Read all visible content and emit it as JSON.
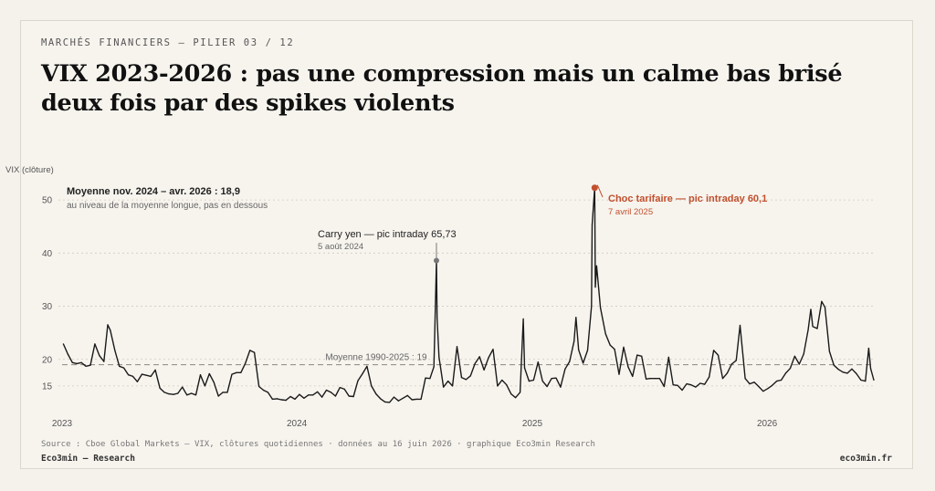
{
  "header": {
    "kicker": "MARCHÉS FINANCIERS — PILIER 03 / 12",
    "title": "VIX 2023-2026 : pas une compression mais un calme bas brisé deux fois par des spikes violents"
  },
  "footer": {
    "source": "Source : Cboe Global Markets — VIX, clôtures quotidiennes · données au 16 juin 2026 · graphique Eco3min Research",
    "brand": "Eco3min — Research",
    "site": "eco3min.fr"
  },
  "chart_data": {
    "type": "line",
    "ylabel": "VIX (clôture)",
    "ylim": [
      10,
      55
    ],
    "yticks": [
      15,
      20,
      30,
      40,
      50
    ],
    "xlim": [
      "2023-01-01",
      "2026-06-16"
    ],
    "xticks": [
      {
        "date": "2023-01-01",
        "label": "2023"
      },
      {
        "date": "2024-01-01",
        "label": "2024"
      },
      {
        "date": "2025-01-01",
        "label": "2025"
      },
      {
        "date": "2026-01-01",
        "label": "2026"
      }
    ],
    "grid": true,
    "reference_line": {
      "value": 19,
      "label": "Moyenne 1990-2025 : 19"
    },
    "note": {
      "title": "Moyenne nov. 2024 – avr. 2026 : 18,9",
      "subtitle": "au niveau de la moyenne longue, pas en dessous"
    },
    "annotations": [
      {
        "date": "2024-08-05",
        "value": 38.6,
        "label": "Carry yen — pic intraday 65,73",
        "sublabel": "5 août 2024",
        "color": "#777777"
      },
      {
        "date": "2025-04-08",
        "value": 52.3,
        "label": "Choc tarifaire — pic intraday 60,1",
        "sublabel": "7 avril 2025",
        "color": "#c1502e"
      }
    ],
    "colors": {
      "line": "#1a1a1a",
      "grid": "#cfcac0",
      "reference": "#8a857c",
      "accent": "#c1502e"
    },
    "series": [
      {
        "points": [
          [
            "2023-01-03",
            22.9
          ],
          [
            "2023-01-10",
            21.0
          ],
          [
            "2023-01-17",
            19.4
          ],
          [
            "2023-01-24",
            19.2
          ],
          [
            "2023-01-31",
            19.4
          ],
          [
            "2023-02-07",
            18.7
          ],
          [
            "2023-02-14",
            18.9
          ],
          [
            "2023-02-21",
            22.9
          ],
          [
            "2023-02-28",
            20.7
          ],
          [
            "2023-03-07",
            19.6
          ],
          [
            "2023-03-13",
            26.5
          ],
          [
            "2023-03-17",
            25.5
          ],
          [
            "2023-03-24",
            21.7
          ],
          [
            "2023-03-31",
            18.7
          ],
          [
            "2023-04-07",
            18.4
          ],
          [
            "2023-04-14",
            17.1
          ],
          [
            "2023-04-21",
            16.8
          ],
          [
            "2023-04-28",
            15.8
          ],
          [
            "2023-05-05",
            17.2
          ],
          [
            "2023-05-12",
            17.0
          ],
          [
            "2023-05-19",
            16.8
          ],
          [
            "2023-05-26",
            18.0
          ],
          [
            "2023-06-02",
            14.6
          ],
          [
            "2023-06-09",
            13.8
          ],
          [
            "2023-06-16",
            13.5
          ],
          [
            "2023-06-23",
            13.4
          ],
          [
            "2023-06-30",
            13.6
          ],
          [
            "2023-07-07",
            14.8
          ],
          [
            "2023-07-14",
            13.3
          ],
          [
            "2023-07-21",
            13.6
          ],
          [
            "2023-07-28",
            13.3
          ],
          [
            "2023-08-04",
            17.1
          ],
          [
            "2023-08-11",
            15.0
          ],
          [
            "2023-08-18",
            17.3
          ],
          [
            "2023-08-25",
            15.7
          ],
          [
            "2023-09-01",
            13.1
          ],
          [
            "2023-09-08",
            13.8
          ],
          [
            "2023-09-15",
            13.8
          ],
          [
            "2023-09-22",
            17.2
          ],
          [
            "2023-09-29",
            17.5
          ],
          [
            "2023-10-06",
            17.5
          ],
          [
            "2023-10-13",
            19.3
          ],
          [
            "2023-10-20",
            21.7
          ],
          [
            "2023-10-27",
            21.3
          ],
          [
            "2023-11-03",
            14.9
          ],
          [
            "2023-11-10",
            14.2
          ],
          [
            "2023-11-17",
            13.8
          ],
          [
            "2023-11-24",
            12.5
          ],
          [
            "2023-12-01",
            12.6
          ],
          [
            "2023-12-08",
            12.4
          ],
          [
            "2023-12-15",
            12.3
          ],
          [
            "2023-12-22",
            13.0
          ],
          [
            "2023-12-29",
            12.5
          ],
          [
            "2024-01-05",
            13.4
          ],
          [
            "2024-01-12",
            12.7
          ],
          [
            "2024-01-19",
            13.3
          ],
          [
            "2024-01-26",
            13.3
          ],
          [
            "2024-02-02",
            13.9
          ],
          [
            "2024-02-09",
            12.9
          ],
          [
            "2024-02-16",
            14.2
          ],
          [
            "2024-02-23",
            13.8
          ],
          [
            "2024-03-01",
            13.1
          ],
          [
            "2024-03-08",
            14.7
          ],
          [
            "2024-03-15",
            14.4
          ],
          [
            "2024-03-22",
            13.1
          ],
          [
            "2024-03-29",
            13.0
          ],
          [
            "2024-04-05",
            16.0
          ],
          [
            "2024-04-12",
            17.3
          ],
          [
            "2024-04-19",
            18.7
          ],
          [
            "2024-04-26",
            15.0
          ],
          [
            "2024-05-03",
            13.5
          ],
          [
            "2024-05-10",
            12.6
          ],
          [
            "2024-05-17",
            12.0
          ],
          [
            "2024-05-24",
            11.9
          ],
          [
            "2024-05-31",
            12.9
          ],
          [
            "2024-06-07",
            12.2
          ],
          [
            "2024-06-14",
            12.7
          ],
          [
            "2024-06-21",
            13.2
          ],
          [
            "2024-06-28",
            12.4
          ],
          [
            "2024-07-05",
            12.5
          ],
          [
            "2024-07-12",
            12.5
          ],
          [
            "2024-07-19",
            16.5
          ],
          [
            "2024-07-26",
            16.4
          ],
          [
            "2024-08-01",
            18.6
          ],
          [
            "2024-08-02",
            23.4
          ],
          [
            "2024-08-05",
            38.6
          ],
          [
            "2024-08-06",
            27.7
          ],
          [
            "2024-08-09",
            20.4
          ],
          [
            "2024-08-16",
            14.8
          ],
          [
            "2024-08-23",
            15.9
          ],
          [
            "2024-08-30",
            15.0
          ],
          [
            "2024-09-06",
            22.4
          ],
          [
            "2024-09-13",
            16.6
          ],
          [
            "2024-09-20",
            16.2
          ],
          [
            "2024-09-27",
            16.9
          ],
          [
            "2024-10-04",
            19.2
          ],
          [
            "2024-10-11",
            20.5
          ],
          [
            "2024-10-18",
            18.0
          ],
          [
            "2024-10-25",
            20.3
          ],
          [
            "2024-11-01",
            21.9
          ],
          [
            "2024-11-08",
            15.0
          ],
          [
            "2024-11-15",
            16.1
          ],
          [
            "2024-11-22",
            15.2
          ],
          [
            "2024-11-29",
            13.5
          ],
          [
            "2024-12-06",
            12.8
          ],
          [
            "2024-12-13",
            13.8
          ],
          [
            "2024-12-18",
            27.6
          ],
          [
            "2024-12-20",
            18.4
          ],
          [
            "2024-12-27",
            15.9
          ],
          [
            "2025-01-03",
            16.1
          ],
          [
            "2025-01-10",
            19.5
          ],
          [
            "2025-01-17",
            15.9
          ],
          [
            "2025-01-24",
            14.9
          ],
          [
            "2025-01-31",
            16.4
          ],
          [
            "2025-02-07",
            16.5
          ],
          [
            "2025-02-14",
            14.8
          ],
          [
            "2025-02-21",
            18.2
          ],
          [
            "2025-02-28",
            19.6
          ],
          [
            "2025-03-07",
            23.4
          ],
          [
            "2025-03-10",
            27.9
          ],
          [
            "2025-03-14",
            21.8
          ],
          [
            "2025-03-21",
            19.3
          ],
          [
            "2025-03-28",
            21.7
          ],
          [
            "2025-04-03",
            30.0
          ],
          [
            "2025-04-04",
            45.3
          ],
          [
            "2025-04-08",
            52.3
          ],
          [
            "2025-04-09",
            33.6
          ],
          [
            "2025-04-11",
            37.6
          ],
          [
            "2025-04-17",
            29.7
          ],
          [
            "2025-04-25",
            24.8
          ],
          [
            "2025-05-02",
            22.7
          ],
          [
            "2025-05-09",
            21.9
          ],
          [
            "2025-05-16",
            17.2
          ],
          [
            "2025-05-23",
            22.3
          ],
          [
            "2025-05-30",
            18.6
          ],
          [
            "2025-06-06",
            16.8
          ],
          [
            "2025-06-13",
            20.8
          ],
          [
            "2025-06-20",
            20.6
          ],
          [
            "2025-06-27",
            16.3
          ],
          [
            "2025-07-03",
            16.4
          ],
          [
            "2025-07-11",
            16.4
          ],
          [
            "2025-07-18",
            16.4
          ],
          [
            "2025-07-25",
            14.9
          ],
          [
            "2025-08-01",
            20.4
          ],
          [
            "2025-08-08",
            15.2
          ],
          [
            "2025-08-15",
            15.1
          ],
          [
            "2025-08-22",
            14.2
          ],
          [
            "2025-08-29",
            15.4
          ],
          [
            "2025-09-05",
            15.2
          ],
          [
            "2025-09-12",
            14.8
          ],
          [
            "2025-09-19",
            15.5
          ],
          [
            "2025-09-26",
            15.3
          ],
          [
            "2025-10-03",
            16.7
          ],
          [
            "2025-10-10",
            21.7
          ],
          [
            "2025-10-17",
            20.8
          ],
          [
            "2025-10-24",
            16.4
          ],
          [
            "2025-10-31",
            17.4
          ],
          [
            "2025-11-07",
            19.1
          ],
          [
            "2025-11-14",
            19.8
          ],
          [
            "2025-11-20",
            26.4
          ],
          [
            "2025-11-28",
            16.4
          ],
          [
            "2025-12-05",
            15.4
          ],
          [
            "2025-12-12",
            15.7
          ],
          [
            "2025-12-19",
            14.9
          ],
          [
            "2025-12-26",
            14.0
          ],
          [
            "2026-01-02",
            14.5
          ],
          [
            "2026-01-09",
            15.1
          ],
          [
            "2026-01-16",
            15.9
          ],
          [
            "2026-01-23",
            16.1
          ],
          [
            "2026-01-30",
            17.4
          ],
          [
            "2026-02-06",
            18.3
          ],
          [
            "2026-02-13",
            20.6
          ],
          [
            "2026-02-20",
            19.1
          ],
          [
            "2026-02-27",
            21.0
          ],
          [
            "2026-03-06",
            25.6
          ],
          [
            "2026-03-10",
            29.4
          ],
          [
            "2026-03-13",
            26.2
          ],
          [
            "2026-03-20",
            25.8
          ],
          [
            "2026-03-27",
            30.9
          ],
          [
            "2026-04-01",
            29.8
          ],
          [
            "2026-04-08",
            21.5
          ],
          [
            "2026-04-15",
            18.9
          ],
          [
            "2026-04-22",
            18.1
          ],
          [
            "2026-04-29",
            17.6
          ],
          [
            "2026-05-06",
            17.4
          ],
          [
            "2026-05-13",
            18.2
          ],
          [
            "2026-05-20",
            17.3
          ],
          [
            "2026-05-27",
            16.1
          ],
          [
            "2026-06-03",
            15.9
          ],
          [
            "2026-06-08",
            22.1
          ],
          [
            "2026-06-11",
            18.3
          ],
          [
            "2026-06-16",
            16.1
          ]
        ]
      }
    ]
  }
}
